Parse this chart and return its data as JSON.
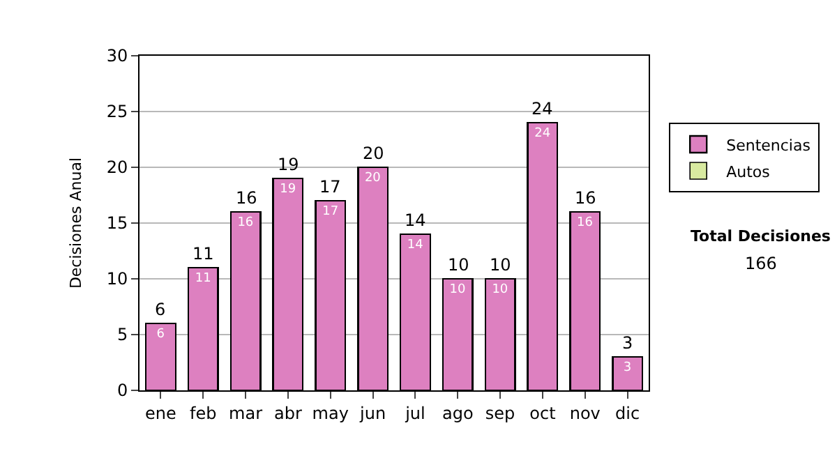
{
  "chart_data": {
    "type": "bar",
    "stacked": true,
    "ylabel": "Decisiones Anual",
    "categories": [
      "ene",
      "feb",
      "mar",
      "abr",
      "may",
      "jun",
      "jul",
      "ago",
      "sep",
      "oct",
      "nov",
      "dic"
    ],
    "series": [
      {
        "name": "Sentencias",
        "color": "#dd80c0",
        "values": [
          6,
          11,
          16,
          19,
          17,
          20,
          14,
          10,
          10,
          24,
          16,
          3
        ],
        "value_labels": [
          "6",
          "11",
          "16",
          "19",
          "17",
          "20",
          "14",
          "10",
          "10",
          "24",
          "16",
          "3"
        ]
      },
      {
        "name": "Autos",
        "color": "#d8eaa0",
        "values": [
          null,
          null,
          null,
          null,
          null,
          null,
          null,
          null,
          null,
          null,
          null,
          null
        ]
      }
    ],
    "totals": [
      "6",
      "11",
      "16",
      "19",
      "17",
      "20",
      "14",
      "10",
      "10",
      "24",
      "16",
      "3"
    ],
    "ylim": [
      0,
      30
    ],
    "yticks": [
      0,
      5,
      10,
      15,
      20,
      25,
      30
    ],
    "grid": "y",
    "legend": "right",
    "annotations": [
      "Total Decisiones",
      "166"
    ]
  }
}
